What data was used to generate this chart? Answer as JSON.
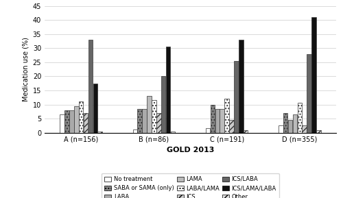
{
  "groups": [
    "A (n=156)",
    "B (n=86)",
    "C (n=191)",
    "D (n=355)"
  ],
  "xlabel": "GOLD 2013",
  "ylabel": "Medication use (%)",
  "ylim": [
    0,
    45
  ],
  "yticks": [
    0,
    5,
    10,
    15,
    20,
    25,
    30,
    35,
    40,
    45
  ],
  "categories": [
    "No treatment",
    "SABA or SAMA (only)",
    "LABA",
    "LAMA",
    "LABA/LAMA",
    "ICS",
    "ICS/LABA",
    "ICS/LAMA/LABA",
    "Other"
  ],
  "colors": [
    "#ffffff",
    "#888888",
    "#aaaaaa",
    "#bbbbbb",
    "#ffffff",
    "#cccccc",
    "#666666",
    "#111111",
    "#dddddd"
  ],
  "hatches": [
    "",
    "....",
    "",
    "",
    "....",
    "////",
    "",
    "",
    "////"
  ],
  "data": {
    "No treatment": [
      6.5,
      1.2,
      1.5,
      2.5
    ],
    "SABA or SAMA (only)": [
      8.0,
      8.5,
      10.0,
      7.0
    ],
    "LABA": [
      8.0,
      8.5,
      8.5,
      4.5
    ],
    "LAMA": [
      9.5,
      13.0,
      8.5,
      6.5
    ],
    "LABA/LAMA": [
      11.0,
      11.5,
      12.0,
      10.5
    ],
    "ICS": [
      7.0,
      7.0,
      4.5,
      2.5
    ],
    "ICS/LABA": [
      33.0,
      20.0,
      25.5,
      28.0
    ],
    "ICS/LAMA/LABA": [
      17.5,
      30.5,
      33.0,
      41.0
    ],
    "Other": [
      0.5,
      0.5,
      1.0,
      1.0
    ]
  },
  "legend_rows": [
    [
      "No treatment",
      "SABA or SAMA (only)",
      "LABA"
    ],
    [
      "LAMA",
      "LABA/LAMA",
      "ICS"
    ],
    [
      "ICS/LABA",
      "ICS/LAMA/LABA",
      "Other"
    ]
  ]
}
